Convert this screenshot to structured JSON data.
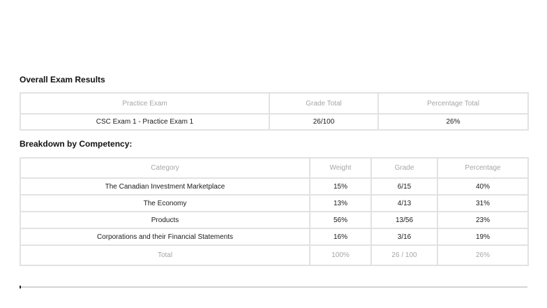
{
  "overall": {
    "title": "Overall Exam Results",
    "headers": [
      "Practice Exam",
      "Grade Total",
      "Percentage Total"
    ],
    "rows": [
      [
        "CSC Exam 1 - Practice Exam 1",
        "26/100",
        "26%"
      ]
    ]
  },
  "breakdown": {
    "title": "Breakdown by Competency:",
    "headers": [
      "Category",
      "Weight",
      "Grade",
      "Percentage"
    ],
    "rows": [
      [
        "The Canadian Investment Marketplace",
        "15%",
        "6/15",
        "40%"
      ],
      [
        "The Economy",
        "13%",
        "4/13",
        "31%"
      ],
      [
        "Products",
        "56%",
        "13/56",
        "23%"
      ],
      [
        "Corporations and their Financial Statements",
        "16%",
        "3/16",
        "19%"
      ]
    ],
    "total": [
      "Total",
      "100%",
      "26 / 100",
      "26%"
    ]
  },
  "colors": {
    "border": "#e2e2e2",
    "header_text": "#a6a6a6",
    "body_text": "#1a1a1a"
  }
}
